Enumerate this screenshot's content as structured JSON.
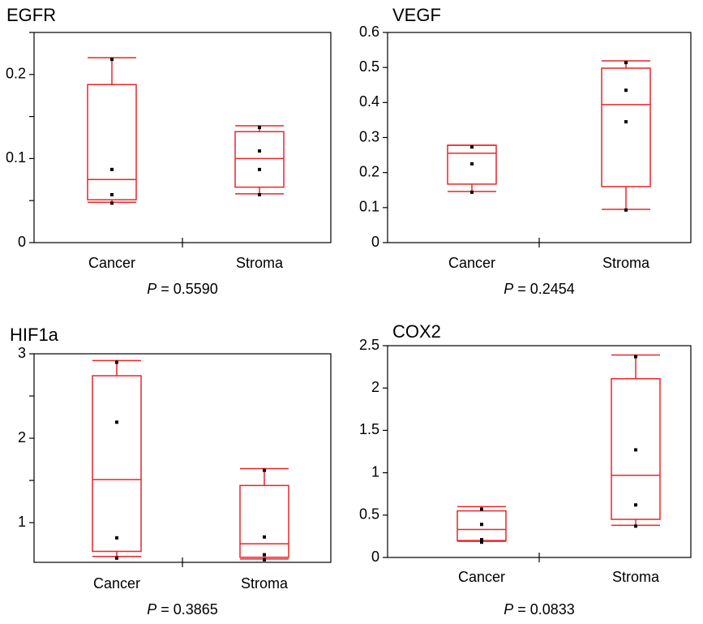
{
  "chart_data": [
    {
      "type": "box",
      "title": "EGFR",
      "categories": [
        "Cancer",
        "Stroma"
      ],
      "boxes": [
        {
          "min": 0.048,
          "q1": 0.051,
          "median": 0.075,
          "q3": 0.188,
          "max": 0.22,
          "points": [
            0.218,
            0.087,
            0.057,
            0.047
          ]
        },
        {
          "min": 0.058,
          "q1": 0.066,
          "median": 0.1,
          "q3": 0.132,
          "max": 0.139,
          "points": [
            0.137,
            0.109,
            0.087,
            0.057
          ]
        }
      ],
      "ylim": [
        0,
        0.25
      ],
      "yticks": [
        0,
        0.1,
        0.2
      ],
      "minor_yticks": [
        0.05,
        0.15,
        0.25
      ],
      "color": "#e8262a",
      "point_color": "#000000",
      "p_symbol": "P",
      "p_text": "= 0.5590"
    },
    {
      "type": "box",
      "title": "VEGF",
      "categories": [
        "Cancer",
        "Stroma"
      ],
      "boxes": [
        {
          "min": 0.146,
          "q1": 0.167,
          "median": 0.255,
          "q3": 0.278,
          "max": 0.278,
          "points": [
            0.273,
            0.225,
            0.144
          ]
        },
        {
          "min": 0.095,
          "q1": 0.16,
          "median": 0.394,
          "q3": 0.498,
          "max": 0.519,
          "points": [
            0.514,
            0.435,
            0.345,
            0.093
          ]
        }
      ],
      "ylim": [
        0,
        0.6
      ],
      "yticks": [
        0,
        0.1,
        0.2,
        0.3,
        0.4,
        0.5,
        0.6
      ],
      "minor_yticks": [],
      "color": "#e8262a",
      "point_color": "#000000",
      "p_symbol": "P",
      "p_text": "= 0.2454"
    },
    {
      "type": "box",
      "title": "HIF1a",
      "categories": [
        "Cancer",
        "Stroma"
      ],
      "boxes": [
        {
          "min": 0.6,
          "q1": 0.66,
          "median": 1.51,
          "q3": 2.74,
          "max": 2.92,
          "points": [
            2.9,
            2.19,
            0.82,
            0.58
          ]
        },
        {
          "min": 0.57,
          "q1": 0.59,
          "median": 0.75,
          "q3": 1.44,
          "max": 1.64,
          "points": [
            1.62,
            0.83,
            0.62,
            0.56
          ]
        }
      ],
      "ylim": [
        0.53,
        3
      ],
      "yticks": [
        1,
        2,
        3
      ],
      "minor_yticks": [
        1.5,
        2.5
      ],
      "color": "#e8262a",
      "point_color": "#000000",
      "p_symbol": "P",
      "p_text": "= 0.3865"
    },
    {
      "type": "box",
      "title": "COX2",
      "categories": [
        "Cancer",
        "Stroma"
      ],
      "boxes": [
        {
          "min": 0.19,
          "q1": 0.2,
          "median": 0.33,
          "q3": 0.55,
          "max": 0.6,
          "points": [
            0.57,
            0.39,
            0.21,
            0.18
          ]
        },
        {
          "min": 0.38,
          "q1": 0.45,
          "median": 0.97,
          "q3": 2.11,
          "max": 2.39,
          "points": [
            2.37,
            1.27,
            0.62,
            0.37
          ]
        }
      ],
      "ylim": [
        0,
        2.5
      ],
      "yticks": [
        0,
        0.5,
        1,
        1.5,
        2,
        2.5
      ],
      "minor_yticks": [],
      "color": "#e8262a",
      "point_color": "#000000",
      "p_symbol": "P",
      "p_text": "= 0.0833"
    }
  ]
}
